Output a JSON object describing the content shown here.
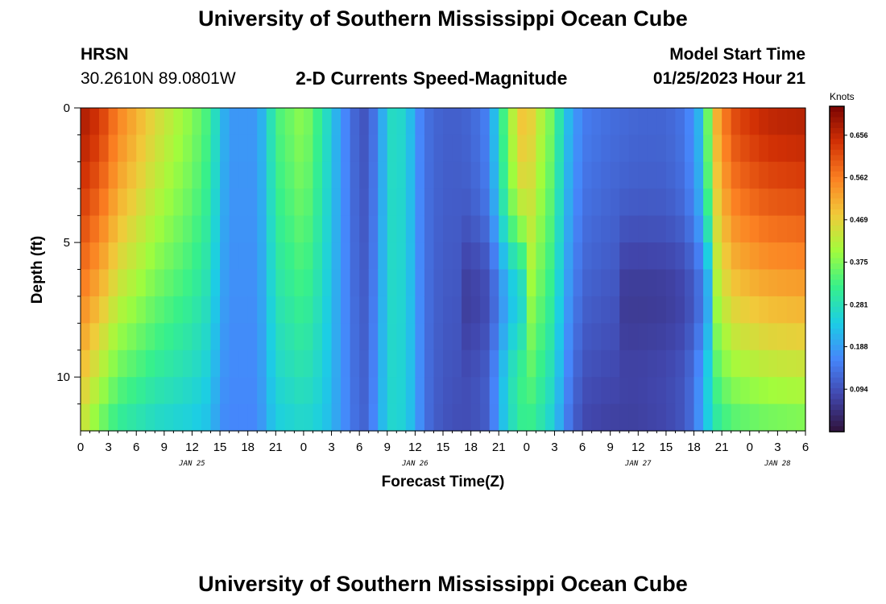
{
  "header": {
    "title": "University of Southern Mississippi Ocean Cube",
    "station": "HRSN",
    "coords": "30.2610N  89.0801W",
    "subtitle": "2-D Currents Speed-Magnitude",
    "model_label": "Model Start Time",
    "model_value": "01/25/2023 Hour 21",
    "footer_title": "University of Southern Mississippi Ocean Cube"
  },
  "colors": {
    "scale": [
      "#30123b",
      "#4146ac",
      "#4686fb",
      "#1ccde5",
      "#37f08b",
      "#a2fc3c",
      "#f1ca3a",
      "#fb8022",
      "#d23105",
      "#7a0403"
    ]
  },
  "chart_data": {
    "type": "heatmap",
    "title": "2-D Currents Speed-Magnitude",
    "xlabel": "Forecast Time(Z)",
    "ylabel": "Depth (ft)",
    "x_hours": [
      0,
      78
    ],
    "y_range_ft": [
      0,
      12
    ],
    "y_ticks": [
      "0",
      "5",
      "10"
    ],
    "y_tick_values": [
      0,
      5,
      10
    ],
    "x_tick_labels": [
      "0",
      "3",
      "6",
      "9",
      "12",
      "15",
      "18",
      "21",
      "0",
      "3",
      "6",
      "9",
      "12",
      "15",
      "18",
      "21",
      "0",
      "3",
      "6",
      "9",
      "12",
      "15",
      "18",
      "21",
      "0",
      "3",
      "6"
    ],
    "day_labels": [
      {
        "text": "JAN 25",
        "hour": 12
      },
      {
        "text": "JAN 26",
        "hour": 36
      },
      {
        "text": "JAN 27",
        "hour": 60
      },
      {
        "text": "JAN 28",
        "hour": 75
      }
    ],
    "colorbar": {
      "unit": "Knots",
      "min": 0.0,
      "max": 0.72,
      "ticks": [
        "0.656",
        "0.562",
        "0.469",
        "0.375",
        "0.281",
        "0.188",
        "0.094"
      ],
      "tick_values": [
        0.656,
        0.562,
        0.469,
        0.375,
        0.281,
        0.188,
        0.094
      ]
    },
    "speed_profile_knots": {
      "hours": [
        0,
        2,
        4,
        8,
        12,
        14,
        15,
        16,
        19,
        20,
        21,
        24,
        26,
        28,
        30,
        31,
        32,
        33.5,
        35,
        36,
        37,
        38,
        40,
        42,
        44,
        45,
        47,
        48,
        49,
        51,
        52,
        54,
        57,
        60,
        63,
        65,
        66,
        67,
        68,
        70,
        72,
        74,
        78
      ],
      "surface": [
        0.68,
        0.64,
        0.56,
        0.46,
        0.38,
        0.32,
        0.23,
        0.18,
        0.18,
        0.24,
        0.33,
        0.39,
        0.3,
        0.18,
        0.1,
        0.1,
        0.17,
        0.27,
        0.26,
        0.18,
        0.14,
        0.12,
        0.11,
        0.12,
        0.16,
        0.28,
        0.47,
        0.5,
        0.44,
        0.35,
        0.24,
        0.15,
        0.13,
        0.12,
        0.12,
        0.14,
        0.18,
        0.24,
        0.48,
        0.61,
        0.64,
        0.66,
        0.67
      ],
      "bottom": [
        0.44,
        0.36,
        0.3,
        0.26,
        0.24,
        0.22,
        0.17,
        0.16,
        0.16,
        0.2,
        0.24,
        0.26,
        0.24,
        0.18,
        0.12,
        0.12,
        0.2,
        0.26,
        0.25,
        0.2,
        0.14,
        0.11,
        0.09,
        0.09,
        0.11,
        0.2,
        0.3,
        0.32,
        0.3,
        0.24,
        0.16,
        0.08,
        0.07,
        0.07,
        0.08,
        0.1,
        0.14,
        0.2,
        0.28,
        0.33,
        0.34,
        0.35,
        0.36
      ],
      "mid_depth_dip": {
        "depth_ft": 7,
        "width_ft": 2.5,
        "hours": [
          [
            41,
            48
          ],
          [
            58,
            68
          ]
        ],
        "factor": 0.15
      }
    }
  }
}
